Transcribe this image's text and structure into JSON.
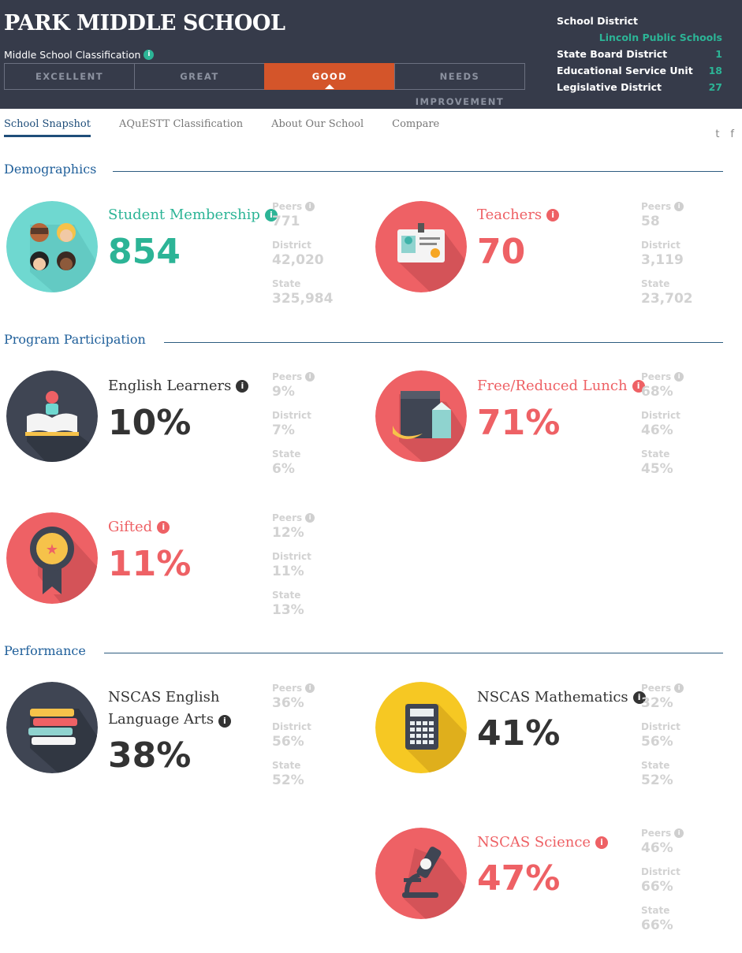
{
  "header": {
    "school_name": "PARK MIDDLE SCHOOL",
    "classification_label": "Middle School Classification",
    "ratings": [
      "EXCELLENT",
      "GREAT",
      "GOOD",
      "NEEDS IMPROVEMENT"
    ],
    "active_rating": "GOOD",
    "district": {
      "school_district_label": "School District",
      "school_district_value": "Lincoln Public Schools",
      "state_board_label": "State Board District",
      "state_board_value": "1",
      "esu_label": "Educational Service Unit",
      "esu_value": "18",
      "legislative_label": "Legislative District",
      "legislative_value": "27"
    }
  },
  "tabs": [
    "School Snapshot",
    "AQuESTT Classification",
    "About Our School",
    "Compare"
  ],
  "social": {
    "twitter": "t",
    "facebook": "f"
  },
  "info_glyph": "i",
  "compare_labels": {
    "peers": "Peers",
    "district": "District",
    "state": "State"
  },
  "sections": {
    "demographics": "Demographics",
    "program": "Program Participation",
    "performance": "Performance"
  },
  "metrics": {
    "membership": {
      "title": "Student Membership",
      "value": "854",
      "peers": "771",
      "district": "42,020",
      "state": "325,984"
    },
    "teachers": {
      "title": "Teachers",
      "value": "70",
      "peers": "58",
      "district": "3,119",
      "state": "23,702"
    },
    "ell": {
      "title": "English Learners",
      "value": "10%",
      "peers": "9%",
      "district": "7%",
      "state": "6%"
    },
    "lunch": {
      "title": "Free/Reduced Lunch",
      "value": "71%",
      "peers": "68%",
      "district": "46%",
      "state": "45%"
    },
    "gifted": {
      "title": "Gifted",
      "value": "11%",
      "peers": "12%",
      "district": "11%",
      "state": "13%"
    },
    "ela": {
      "title": "NSCAS English Language Arts",
      "value": "38%",
      "peers": "36%",
      "district": "56%",
      "state": "52%"
    },
    "math": {
      "title": "NSCAS Mathematics",
      "value": "41%",
      "peers": "32%",
      "district": "56%",
      "state": "52%"
    },
    "science": {
      "title": "NSCAS Science",
      "value": "47%",
      "peers": "46%",
      "district": "66%",
      "state": "66%"
    }
  },
  "colors": {
    "header_bg": "#363b4a",
    "accent_teal": "#2cb496",
    "accent_red": "#ee6165",
    "active_rating": "#d4552a",
    "navy": "#1f5f9a"
  }
}
